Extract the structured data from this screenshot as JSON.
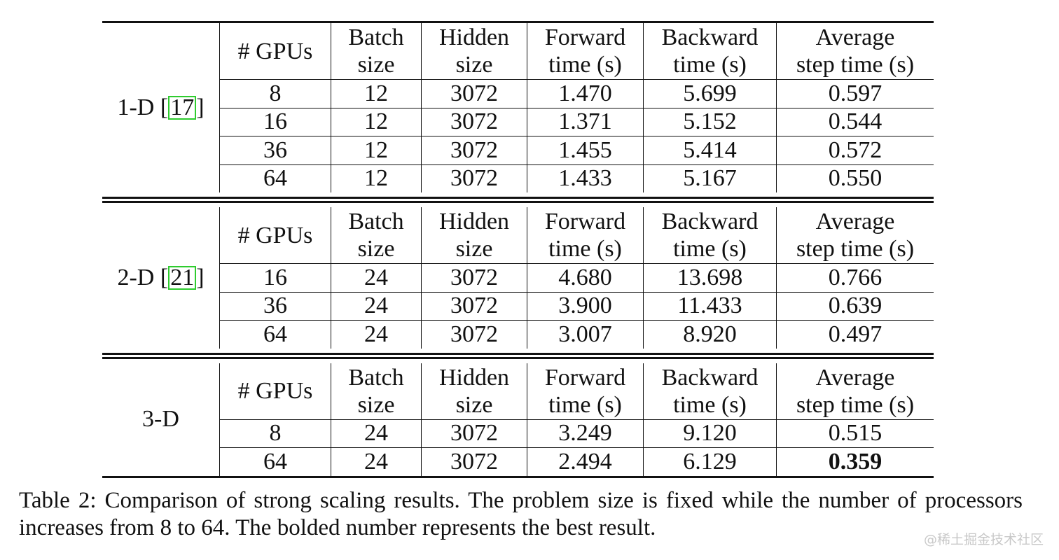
{
  "headers": [
    "# GPUs",
    "Batch size",
    "Hidden size",
    "Forward time (s)",
    "Backward time (s)",
    "Average step time (s)"
  ],
  "headers_lines": [
    [
      "# GPUs"
    ],
    [
      "Batch",
      "size"
    ],
    [
      "Hidden",
      "size"
    ],
    [
      "Forward",
      "time (s)"
    ],
    [
      "Backward",
      "time (s)"
    ],
    [
      "Average",
      "step time (s)"
    ]
  ],
  "sections": [
    {
      "method": "1-D [",
      "cite": "17",
      "close": "]",
      "rows": [
        [
          "8",
          "12",
          "3072",
          "1.470",
          "5.699",
          "0.597"
        ],
        [
          "16",
          "12",
          "3072",
          "1.371",
          "5.152",
          "0.544"
        ],
        [
          "36",
          "12",
          "3072",
          "1.455",
          "5.414",
          "0.572"
        ],
        [
          "64",
          "12",
          "3072",
          "1.433",
          "5.167",
          "0.550"
        ]
      ]
    },
    {
      "method": "2-D [",
      "cite": "21",
      "close": "]",
      "rows": [
        [
          "16",
          "24",
          "3072",
          "4.680",
          "13.698",
          "0.766"
        ],
        [
          "36",
          "24",
          "3072",
          "3.900",
          "11.433",
          "0.639"
        ],
        [
          "64",
          "24",
          "3072",
          "3.007",
          "8.920",
          "0.497"
        ]
      ]
    },
    {
      "method": "3-D",
      "cite": "",
      "close": "",
      "rows": [
        [
          "8",
          "24",
          "3072",
          "3.249",
          "9.120",
          "0.515"
        ],
        [
          "64",
          "24",
          "3072",
          "2.494",
          "6.129",
          "0.359"
        ]
      ],
      "bold_cell": [
        1,
        5
      ]
    }
  ],
  "caption": "Table 2: Comparison of strong scaling results. The problem size is fixed while the number of processors increases from 8 to 64. The bolded number represents the best result.",
  "watermark": "@稀土掘金技术社区",
  "cite_color": "#2ecc2e"
}
